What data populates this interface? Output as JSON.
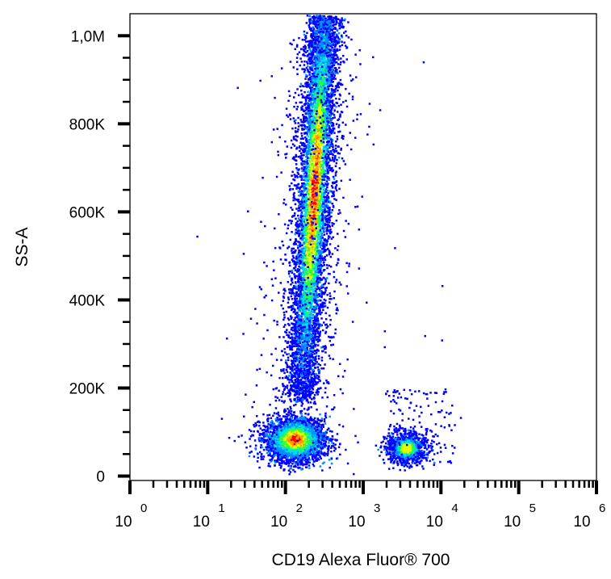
{
  "chart_data": {
    "type": "scatter",
    "subtype": "flow-cytometry-density-dot-plot",
    "title": "",
    "xlabel": "CD19 Alexa Fluor® 700",
    "ylabel": "SS-A",
    "x_scale": "log",
    "xlim": [
      1,
      1000000
    ],
    "ylim": [
      -10000,
      1050000
    ],
    "x_ticks": [
      {
        "base": "10",
        "exp": "0",
        "value": 1
      },
      {
        "base": "10",
        "exp": "1",
        "value": 10
      },
      {
        "base": "10",
        "exp": "2",
        "value": 100
      },
      {
        "base": "10",
        "exp": "3",
        "value": 1000
      },
      {
        "base": "10",
        "exp": "4",
        "value": 10000
      },
      {
        "base": "10",
        "exp": "5",
        "value": 100000
      },
      {
        "base": "10",
        "exp": "6",
        "value": 1000000
      }
    ],
    "y_ticks": [
      {
        "label": "0",
        "value": 0
      },
      {
        "label": "200K",
        "value": 200000
      },
      {
        "label": "400K",
        "value": 400000
      },
      {
        "label": "600K",
        "value": 600000
      },
      {
        "label": "800K",
        "value": 800000
      },
      {
        "label": "1,0M",
        "value": 1000000
      }
    ],
    "grid": false,
    "legend": "none",
    "density_colormap": [
      "#0000ff",
      "#0090ff",
      "#00e0e0",
      "#30ff30",
      "#e0ff00",
      "#ffa000",
      "#ff0000"
    ],
    "populations": [
      {
        "x_center": 130,
        "y_center": 85000,
        "log_x_spread": 0.15,
        "y_spread": 25000,
        "density": "high"
      },
      {
        "x_center": 220,
        "y_range": [
          170000,
          1050000
        ],
        "peak_y": 650000,
        "density": "medium-high"
      },
      {
        "x_center": 3500,
        "y_center": 65000,
        "log_x_spread": 0.13,
        "y_spread": 18000,
        "density": "medium"
      }
    ]
  }
}
